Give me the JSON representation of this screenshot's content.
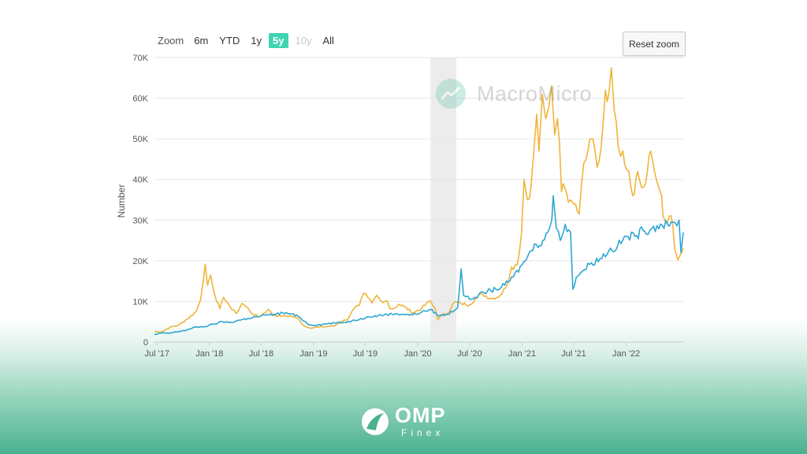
{
  "zoom": {
    "label": "Zoom",
    "buttons": [
      {
        "label": "6m",
        "state": "normal"
      },
      {
        "label": "YTD",
        "state": "normal"
      },
      {
        "label": "1y",
        "state": "normal"
      },
      {
        "label": "5y",
        "state": "active"
      },
      {
        "label": "10y",
        "state": "disabled"
      },
      {
        "label": "All",
        "state": "normal"
      }
    ]
  },
  "reset_zoom_label": "Reset zoom",
  "watermark": {
    "text": "MacroMicro",
    "icon": "trend-line-icon"
  },
  "brand": {
    "name": "OMP",
    "sub": "Finex",
    "icon": "omp-logo-icon"
  },
  "colors": {
    "series_gold": "#f0b43a",
    "series_blue": "#2fa6d4",
    "highlight_band": "#ececec",
    "accent": "#3fd5b0"
  },
  "chart_data": {
    "type": "line",
    "title": "",
    "xlabel": "",
    "ylabel": "Number",
    "ylim": [
      0,
      70000
    ],
    "yticks": [
      0,
      10000,
      20000,
      30000,
      40000,
      50000,
      60000,
      70000
    ],
    "ytick_labels": [
      "0",
      "10K",
      "20K",
      "30K",
      "40K",
      "50K",
      "60K",
      "70K"
    ],
    "xlim": [
      "2017-06-22",
      "2022-07-20"
    ],
    "xticks": [
      "2017-07-01",
      "2018-01-01",
      "2018-07-01",
      "2019-01-01",
      "2019-07-01",
      "2020-01-01",
      "2020-07-01",
      "2021-01-01",
      "2021-07-01",
      "2022-01-01"
    ],
    "xtick_labels": [
      "Jul '17",
      "Jan '18",
      "Jul '18",
      "Jan '19",
      "Jul '19",
      "Jan '20",
      "Jul '20",
      "Jan '21",
      "Jul '21",
      "Jan '22"
    ],
    "grid": true,
    "legend": "none",
    "shaded_period": {
      "start": "2020-02-15",
      "end": "2020-05-15"
    },
    "series": [
      {
        "color": "#f0b43a",
        "x": [
          "2017-06-22",
          "2017-07-15",
          "2017-08-15",
          "2017-09-15",
          "2017-10-15",
          "2017-11-15",
          "2017-12-01",
          "2017-12-10",
          "2017-12-17",
          "2017-12-25",
          "2018-01-05",
          "2018-01-20",
          "2018-02-06",
          "2018-02-20",
          "2018-03-05",
          "2018-03-20",
          "2018-04-05",
          "2018-04-25",
          "2018-05-10",
          "2018-06-01",
          "2018-06-25",
          "2018-07-25",
          "2018-08-15",
          "2018-09-15",
          "2018-10-15",
          "2018-11-10",
          "2018-11-25",
          "2018-12-15",
          "2019-01-15",
          "2019-02-15",
          "2019-03-15",
          "2019-04-05",
          "2019-05-01",
          "2019-05-20",
          "2019-06-10",
          "2019-06-26",
          "2019-07-10",
          "2019-07-25",
          "2019-08-10",
          "2019-08-25",
          "2019-09-15",
          "2019-09-26",
          "2019-10-10",
          "2019-10-26",
          "2019-11-15",
          "2019-12-15",
          "2020-01-15",
          "2020-02-13",
          "2020-03-01",
          "2020-03-12",
          "2020-03-25",
          "2020-04-15",
          "2020-05-08",
          "2020-06-01",
          "2020-07-01",
          "2020-07-27",
          "2020-08-15",
          "2020-09-15",
          "2020-10-15",
          "2020-11-05",
          "2020-11-25",
          "2020-12-15",
          "2020-12-30",
          "2021-01-08",
          "2021-01-20",
          "2021-02-01",
          "2021-02-10",
          "2021-02-21",
          "2021-03-01",
          "2021-03-13",
          "2021-03-25",
          "2021-04-05",
          "2021-04-14",
          "2021-04-25",
          "2021-05-05",
          "2021-05-12",
          "2021-05-19",
          "2021-05-25",
          "2021-06-05",
          "2021-06-20",
          "2021-07-01",
          "2021-07-20",
          "2021-08-05",
          "2021-08-20",
          "2021-09-06",
          "2021-09-21",
          "2021-10-05",
          "2021-10-20",
          "2021-11-01",
          "2021-11-10",
          "2021-11-20",
          "2021-12-04",
          "2021-12-20",
          "2022-01-10",
          "2022-01-24",
          "2022-02-10",
          "2022-02-24",
          "2022-03-10",
          "2022-03-28",
          "2022-04-10",
          "2022-04-25",
          "2022-05-05",
          "2022-05-10",
          "2022-05-20",
          "2022-06-01",
          "2022-06-13",
          "2022-06-20",
          "2022-07-01",
          "2022-07-10",
          "2022-07-20"
        ],
        "values": [
          2600,
          2500,
          3600,
          4200,
          5700,
          7500,
          10500,
          15000,
          19200,
          14000,
          16500,
          11500,
          8200,
          11000,
          9800,
          8000,
          7000,
          9500,
          8700,
          6900,
          6200,
          8000,
          6600,
          6400,
          6400,
          5700,
          4200,
          3500,
          3700,
          3800,
          4000,
          5000,
          5700,
          8000,
          9000,
          12000,
          11000,
          9600,
          11500,
          10100,
          10200,
          8200,
          8300,
          9300,
          8700,
          7200,
          8300,
          10200,
          8500,
          5500,
          6600,
          7100,
          9800,
          9500,
          9200,
          11100,
          11800,
          10700,
          11400,
          13400,
          18500,
          19000,
          27000,
          40000,
          35000,
          38000,
          46000,
          56000,
          47000,
          61000,
          55000,
          58000,
          63000,
          51000,
          55000,
          49000,
          37000,
          39000,
          37000,
          35000,
          34000,
          31500,
          44000,
          47000,
          50000,
          43000,
          48000,
          62000,
          61000,
          67500,
          57000,
          48000,
          47000,
          42000,
          36000,
          42000,
          38000,
          39000,
          47000,
          42000,
          38000,
          36000,
          31000,
          29500,
          31000,
          29000,
          23000,
          20200,
          21500,
          23000
        ]
      },
      {
        "color": "#2fa6d4",
        "x": [
          "2017-06-22",
          "2017-07-15",
          "2017-08-15",
          "2017-09-15",
          "2017-10-15",
          "2017-11-15",
          "2017-12-15",
          "2018-01-15",
          "2018-02-15",
          "2018-03-15",
          "2018-04-15",
          "2018-05-15",
          "2018-06-15",
          "2018-07-15",
          "2018-08-15",
          "2018-09-15",
          "2018-10-15",
          "2018-11-15",
          "2018-12-15",
          "2019-01-15",
          "2019-02-15",
          "2019-03-15",
          "2019-04-15",
          "2019-05-15",
          "2019-06-15",
          "2019-07-15",
          "2019-08-15",
          "2019-09-15",
          "2019-10-15",
          "2019-11-15",
          "2019-12-15",
          "2020-01-15",
          "2020-02-15",
          "2020-03-15",
          "2020-04-15",
          "2020-05-20",
          "2020-06-01",
          "2020-06-10",
          "2020-07-01",
          "2020-08-01",
          "2020-09-01",
          "2020-10-01",
          "2020-11-01",
          "2020-12-01",
          "2021-01-01",
          "2021-01-20",
          "2021-02-01",
          "2021-02-20",
          "2021-03-15",
          "2021-04-01",
          "2021-04-15",
          "2021-04-20",
          "2021-05-01",
          "2021-05-15",
          "2021-06-01",
          "2021-06-20",
          "2021-06-28",
          "2021-07-10",
          "2021-08-01",
          "2021-09-01",
          "2021-10-01",
          "2021-11-01",
          "2021-12-01",
          "2022-01-01",
          "2022-02-01",
          "2022-03-01",
          "2022-04-01",
          "2022-05-01",
          "2022-06-01",
          "2022-06-20",
          "2022-07-05",
          "2022-07-12",
          "2022-07-20"
        ],
        "values": [
          1800,
          2200,
          2200,
          2600,
          3000,
          3700,
          3800,
          4400,
          5000,
          4800,
          5400,
          5800,
          6200,
          6600,
          6800,
          7200,
          6900,
          6000,
          4300,
          4200,
          4500,
          4700,
          4800,
          5200,
          5800,
          6200,
          6500,
          6800,
          7000,
          6800,
          6700,
          7400,
          8000,
          6500,
          6800,
          8500,
          18000,
          11500,
          10500,
          11500,
          12500,
          13000,
          14000,
          16000,
          19000,
          21000,
          22500,
          24000,
          25000,
          27000,
          30000,
          36000,
          28000,
          25000,
          29000,
          27000,
          13000,
          16000,
          17500,
          19500,
          20500,
          22500,
          23500,
          26000,
          26000,
          27500,
          28000,
          29000,
          28500,
          29500,
          30000,
          22000,
          27000
        ]
      }
    ]
  }
}
